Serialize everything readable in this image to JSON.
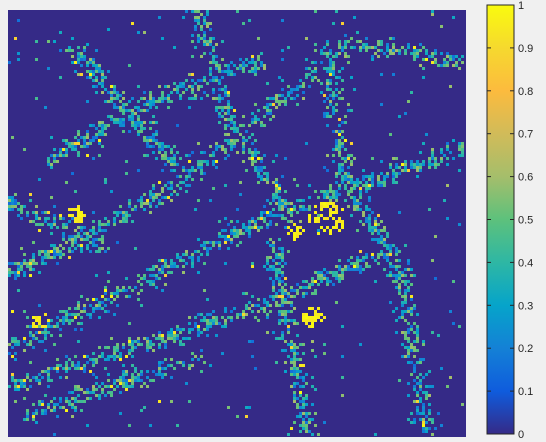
{
  "chart_data": {
    "type": "heatmap",
    "title": "",
    "xlabel": "",
    "ylabel": "",
    "colormap": "parula",
    "clim": [
      0,
      1
    ],
    "background_value": 0,
    "colorbar": {
      "placement": "right",
      "ticks": [
        0,
        0.1,
        0.2,
        0.3,
        0.4,
        0.5,
        0.6,
        0.7,
        0.8,
        0.9,
        1
      ],
      "tick_labels": [
        "0",
        "0.1",
        "0.2",
        "0.3",
        "0.4",
        "0.5",
        "0.6",
        "0.7",
        "0.8",
        "0.9",
        "1"
      ]
    },
    "colors": {
      "low": "#3e26a8",
      "mid": "#2eb7a2",
      "high": "#f9fb15"
    }
  }
}
